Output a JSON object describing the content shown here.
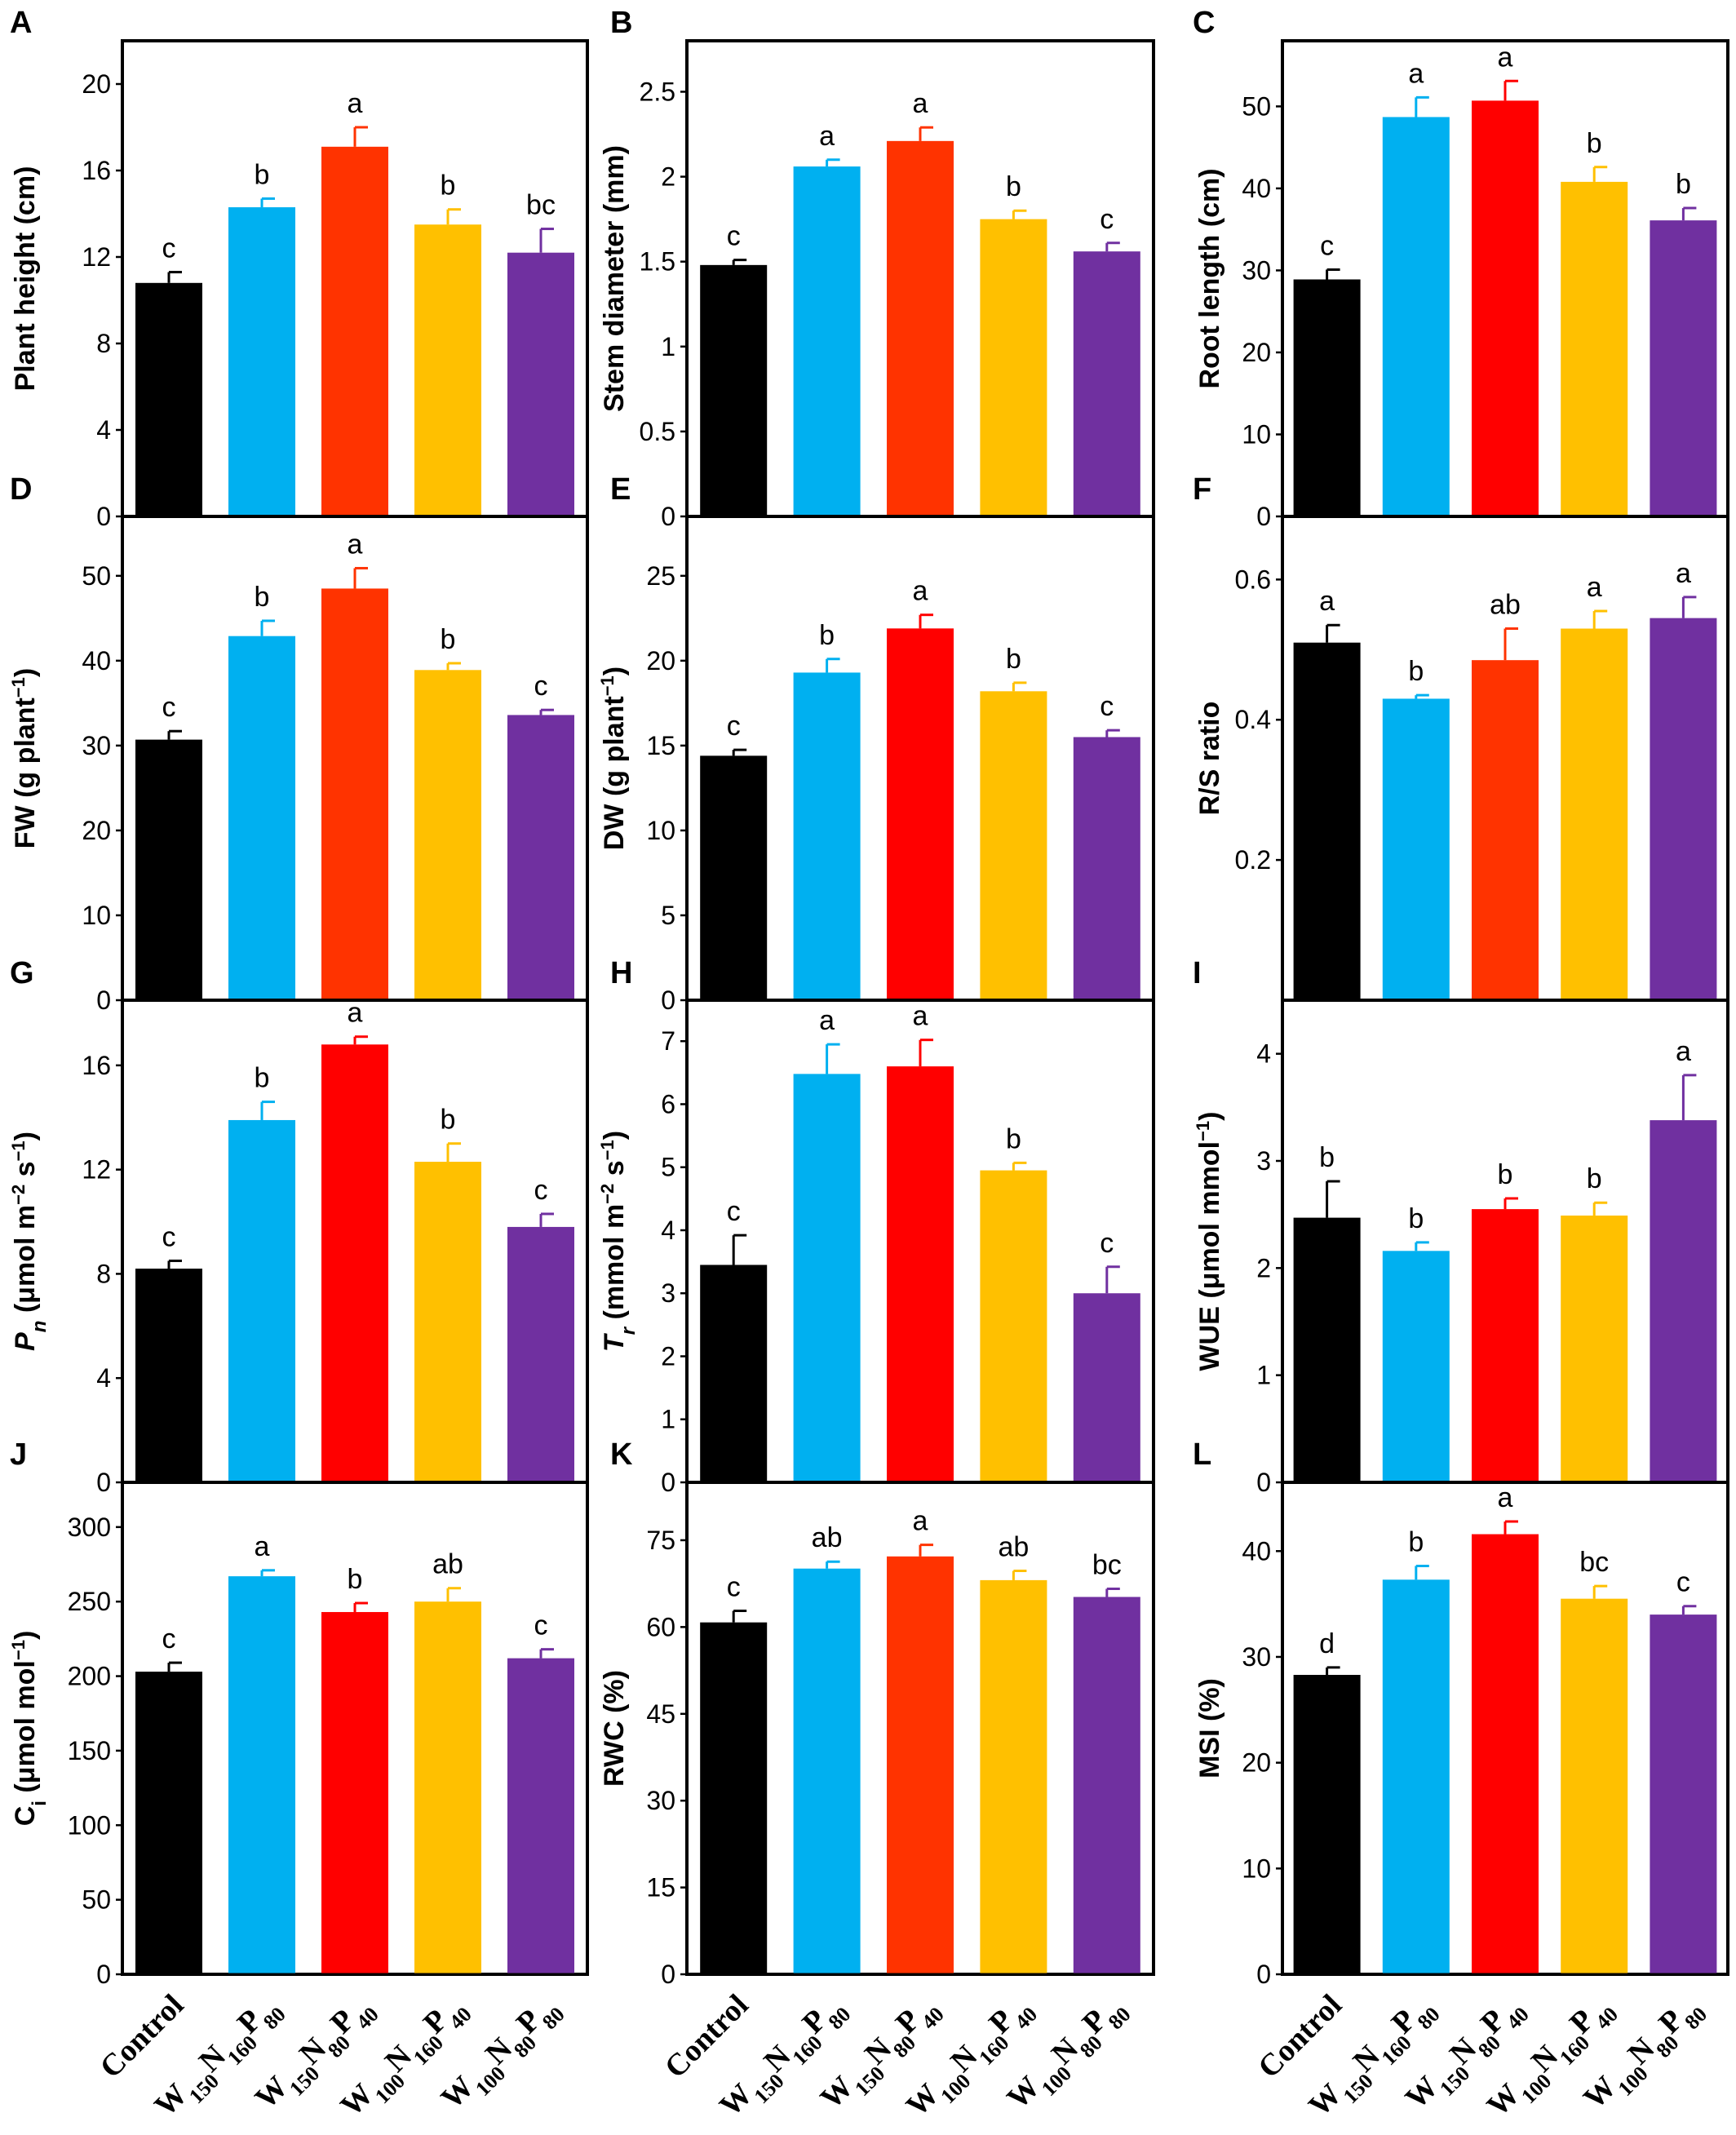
{
  "categories": [
    "Control",
    "W150N160P80",
    "W150N80P40",
    "W100N160P40",
    "W100N80P80"
  ],
  "category_parts": [
    [
      {
        "t": "Control",
        "s": false
      }
    ],
    [
      {
        "t": "W",
        "s": false
      },
      {
        "t": "150",
        "s": true
      },
      {
        "t": "N",
        "s": false
      },
      {
        "t": "160",
        "s": true
      },
      {
        "t": "P",
        "s": false
      },
      {
        "t": "80",
        "s": true
      }
    ],
    [
      {
        "t": "W",
        "s": false
      },
      {
        "t": "150",
        "s": true
      },
      {
        "t": "N",
        "s": false
      },
      {
        "t": "80",
        "s": true
      },
      {
        "t": "P",
        "s": false
      },
      {
        "t": "40",
        "s": true
      }
    ],
    [
      {
        "t": "W",
        "s": false
      },
      {
        "t": "100",
        "s": true
      },
      {
        "t": "N",
        "s": false
      },
      {
        "t": "160",
        "s": true
      },
      {
        "t": "P",
        "s": false
      },
      {
        "t": "40",
        "s": true
      }
    ],
    [
      {
        "t": "W",
        "s": false
      },
      {
        "t": "100",
        "s": true
      },
      {
        "t": "N",
        "s": false
      },
      {
        "t": "80",
        "s": true
      },
      {
        "t": "P",
        "s": false
      },
      {
        "t": "80",
        "s": true
      }
    ]
  ],
  "colors": {
    "control": "#000000",
    "blue": "#00b0f0",
    "orange_red": "#ff3300",
    "red": "#ff0000",
    "yellow": "#ffc000",
    "purple": "#7030a0"
  },
  "chart_data": [
    {
      "panel": "A",
      "type": "bar",
      "ylabel": "Plant height (cm)",
      "ylabel_parts": [
        {
          "t": "Plant height (cm)"
        }
      ],
      "ylim": [
        0,
        22
      ],
      "yticks": [
        0,
        4,
        8,
        12,
        16,
        20
      ],
      "values": [
        10.8,
        14.3,
        17.1,
        13.5,
        12.2
      ],
      "errors": [
        0.5,
        0.4,
        0.9,
        0.7,
        1.1
      ],
      "labels": [
        "c",
        "b",
        "a",
        "b",
        "bc"
      ],
      "bar_colors": [
        "#000000",
        "#00b0f0",
        "#ff3300",
        "#ffc000",
        "#7030a0"
      ]
    },
    {
      "panel": "B",
      "type": "bar",
      "ylabel": "Stem diameter (mm)",
      "ylabel_parts": [
        {
          "t": "Stem diameter (mm)"
        }
      ],
      "ylim": [
        0,
        2.8
      ],
      "yticks": [
        0,
        0.5,
        1,
        1.5,
        2,
        2.5
      ],
      "values": [
        1.48,
        2.06,
        2.21,
        1.75,
        1.56
      ],
      "errors": [
        0.03,
        0.04,
        0.08,
        0.05,
        0.05
      ],
      "labels": [
        "c",
        "a",
        "a",
        "b",
        "c"
      ],
      "bar_colors": [
        "#000000",
        "#00b0f0",
        "#ff3300",
        "#ffc000",
        "#7030a0"
      ]
    },
    {
      "panel": "C",
      "type": "bar",
      "ylabel": "Root length (cm)",
      "ylabel_parts": [
        {
          "t": "Root length (cm)"
        }
      ],
      "ylim": [
        0,
        58
      ],
      "yticks": [
        0,
        10,
        20,
        30,
        40,
        50
      ],
      "values": [
        28.9,
        48.7,
        50.7,
        40.8,
        36.1
      ],
      "errors": [
        1.2,
        2.4,
        2.4,
        1.8,
        1.5
      ],
      "labels": [
        "c",
        "a",
        "a",
        "b",
        "b"
      ],
      "bar_colors": [
        "#000000",
        "#00b0f0",
        "#ff0000",
        "#ffc000",
        "#7030a0"
      ]
    },
    {
      "panel": "D",
      "type": "bar",
      "ylabel": "FW (g plant−1)",
      "ylabel_parts": [
        {
          "t": "FW (g plant"
        },
        {
          "t": "−1",
          "sup": true
        },
        {
          "t": ")"
        }
      ],
      "ylim": [
        0,
        57
      ],
      "yticks": [
        0,
        10,
        20,
        30,
        40,
        50
      ],
      "values": [
        30.7,
        42.9,
        48.5,
        38.9,
        33.6
      ],
      "errors": [
        1.0,
        1.8,
        2.4,
        0.8,
        0.6
      ],
      "labels": [
        "c",
        "b",
        "a",
        "b",
        "c"
      ],
      "bar_colors": [
        "#000000",
        "#00b0f0",
        "#ff3300",
        "#ffc000",
        "#7030a0"
      ]
    },
    {
      "panel": "E",
      "type": "bar",
      "ylabel": "DW (g plant−1)",
      "ylabel_parts": [
        {
          "t": "DW (g plant"
        },
        {
          "t": "−1",
          "sup": true
        },
        {
          "t": ")"
        }
      ],
      "ylim": [
        0,
        28.5
      ],
      "yticks": [
        0,
        5,
        10,
        15,
        20,
        25
      ],
      "values": [
        14.4,
        19.3,
        21.9,
        18.2,
        15.5
      ],
      "errors": [
        0.35,
        0.8,
        0.8,
        0.5,
        0.4
      ],
      "labels": [
        "c",
        "b",
        "a",
        "b",
        "c"
      ],
      "bar_colors": [
        "#000000",
        "#00b0f0",
        "#ff0000",
        "#ffc000",
        "#7030a0"
      ]
    },
    {
      "panel": "F",
      "type": "bar",
      "ylabel": "R/S ratio",
      "ylabel_parts": [
        {
          "t": "R/S ratio"
        }
      ],
      "ylim": [
        0,
        0.69
      ],
      "yticks": [
        0.2,
        0.4,
        0.6
      ],
      "values": [
        0.51,
        0.43,
        0.485,
        0.53,
        0.545
      ],
      "errors": [
        0.025,
        0.005,
        0.045,
        0.025,
        0.03
      ],
      "labels": [
        "a",
        "b",
        "ab",
        "a",
        "a"
      ],
      "bar_colors": [
        "#000000",
        "#00b0f0",
        "#ff3300",
        "#ffc000",
        "#7030a0"
      ]
    },
    {
      "panel": "G",
      "type": "bar",
      "ylabel": "Pn (μmol m−2 s−1)",
      "ylabel_parts": [
        {
          "t": "P",
          "it": true
        },
        {
          "t": "n",
          "sub": true,
          "it": true
        },
        {
          "t": " (μmol m"
        },
        {
          "t": "−2",
          "sup": true
        },
        {
          "t": " s"
        },
        {
          "t": "−1",
          "sup": true
        },
        {
          "t": ")"
        }
      ],
      "ylim": [
        0,
        18.5
      ],
      "yticks": [
        0,
        4,
        8,
        12,
        16
      ],
      "values": [
        8.2,
        13.9,
        16.8,
        12.3,
        9.8
      ],
      "errors": [
        0.3,
        0.7,
        0.3,
        0.7,
        0.5
      ],
      "labels": [
        "c",
        "b",
        "a",
        "b",
        "c"
      ],
      "bar_colors": [
        "#000000",
        "#00b0f0",
        "#ff0000",
        "#ffc000",
        "#7030a0"
      ]
    },
    {
      "panel": "H",
      "type": "bar",
      "ylabel": "Tr (mmol m−2 s−1)",
      "ylabel_parts": [
        {
          "t": "T",
          "it": true
        },
        {
          "t": "r",
          "sub": true,
          "it": true
        },
        {
          "t": " (mmol m"
        },
        {
          "t": "−2",
          "sup": true
        },
        {
          "t": " s"
        },
        {
          "t": "−1",
          "sup": true
        },
        {
          "t": ")"
        }
      ],
      "ylim": [
        0,
        7.65
      ],
      "yticks": [
        0,
        1,
        2,
        3,
        4,
        5,
        6,
        7
      ],
      "values": [
        3.45,
        6.48,
        6.6,
        4.95,
        3.0
      ],
      "errors": [
        0.47,
        0.47,
        0.42,
        0.12,
        0.42
      ],
      "labels": [
        "c",
        "a",
        "a",
        "b",
        "c"
      ],
      "bar_colors": [
        "#000000",
        "#00b0f0",
        "#ff0000",
        "#ffc000",
        "#7030a0"
      ]
    },
    {
      "panel": "I",
      "type": "bar",
      "ylabel": "WUE (μmol mmol−1)",
      "ylabel_parts": [
        {
          "t": "WUE (μmol mmol"
        },
        {
          "t": "−1",
          "sup": true
        },
        {
          "t": ")"
        }
      ],
      "ylim": [
        0,
        4.5
      ],
      "yticks": [
        0,
        1,
        2,
        3,
        4
      ],
      "values": [
        2.47,
        2.16,
        2.55,
        2.49,
        3.38
      ],
      "errors": [
        0.34,
        0.08,
        0.1,
        0.12,
        0.42
      ],
      "labels": [
        "b",
        "b",
        "b",
        "b",
        "a"
      ],
      "bar_colors": [
        "#000000",
        "#00b0f0",
        "#ff0000",
        "#ffc000",
        "#7030a0"
      ]
    },
    {
      "panel": "J",
      "type": "bar",
      "ylabel": "Ci (μmol mol−1)",
      "ylabel_parts": [
        {
          "t": "C"
        },
        {
          "t": "i",
          "sub": true
        },
        {
          "t": " (μmol mol"
        },
        {
          "t": "−1",
          "sup": true
        },
        {
          "t": ")"
        }
      ],
      "ylim": [
        0,
        330
      ],
      "yticks": [
        0,
        50,
        100,
        150,
        200,
        250,
        300
      ],
      "values": [
        203,
        267,
        243,
        250,
        212
      ],
      "errors": [
        6,
        4,
        6,
        9,
        6
      ],
      "labels": [
        "c",
        "a",
        "b",
        "ab",
        "c"
      ],
      "bar_colors": [
        "#000000",
        "#00b0f0",
        "#ff0000",
        "#ffc000",
        "#7030a0"
      ]
    },
    {
      "panel": "K",
      "type": "bar",
      "ylabel": "RWC (%)",
      "ylabel_parts": [
        {
          "t": "RWC (%)"
        }
      ],
      "ylim": [
        0,
        85
      ],
      "yticks": [
        0,
        15,
        30,
        45,
        60,
        75
      ],
      "values": [
        60.8,
        70.1,
        72.2,
        68.1,
        65.2
      ],
      "errors": [
        2.0,
        1.2,
        2.0,
        1.6,
        1.4
      ],
      "labels": [
        "c",
        "ab",
        "a",
        "ab",
        "bc"
      ],
      "bar_colors": [
        "#000000",
        "#00b0f0",
        "#ff3300",
        "#ffc000",
        "#7030a0"
      ]
    },
    {
      "panel": "L",
      "type": "bar",
      "ylabel": "MSI (%)",
      "ylabel_parts": [
        {
          "t": "MSI (%)"
        }
      ],
      "ylim": [
        0,
        46.5
      ],
      "yticks": [
        0,
        10,
        20,
        30,
        40
      ],
      "values": [
        28.3,
        37.3,
        41.6,
        35.5,
        34.0
      ],
      "errors": [
        0.7,
        1.3,
        1.2,
        1.2,
        0.8
      ],
      "labels": [
        "d",
        "b",
        "a",
        "bc",
        "c"
      ],
      "bar_colors": [
        "#000000",
        "#00b0f0",
        "#ff0000",
        "#ffc000",
        "#7030a0"
      ]
    }
  ]
}
